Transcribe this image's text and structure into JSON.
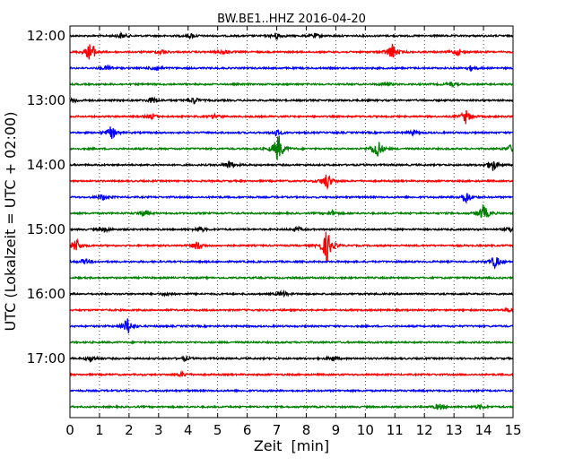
{
  "chart_data": {
    "type": "line",
    "title": "BW.BE1..HHZ 2016-04-20",
    "xlabel": "Zeit  [min]",
    "ylabel": "UTC (Lokalzeit = UTC + 02:00)",
    "xlim": [
      0,
      15
    ],
    "x_ticks": [
      "0",
      "1",
      "2",
      "3",
      "4",
      "5",
      "6",
      "7",
      "8",
      "9",
      "10",
      "11",
      "12",
      "13",
      "14",
      "15"
    ],
    "y_tick_labels": [
      "12:00",
      "13:00",
      "14:00",
      "15:00",
      "16:00",
      "17:00"
    ],
    "grid": "vertical dotted lines at each minute",
    "line_colors": [
      "#000000",
      "#ff0000",
      "#0000ff",
      "#008000"
    ],
    "series": [
      {
        "start": "12:00",
        "events": [
          {
            "x": 1.75,
            "amp": 0.25
          },
          {
            "x": 4.1,
            "amp": 0.2
          },
          {
            "x": 7.0,
            "amp": 0.3
          },
          {
            "x": 8.3,
            "amp": 0.2
          }
        ]
      },
      {
        "start": "12:15",
        "events": [
          {
            "x": 0.7,
            "amp": 1.0
          },
          {
            "x": 3.1,
            "amp": 0.2
          },
          {
            "x": 5.2,
            "amp": 0.2
          },
          {
            "x": 10.9,
            "amp": 0.8
          },
          {
            "x": 13.1,
            "amp": 0.3
          }
        ]
      },
      {
        "start": "12:30",
        "events": [
          {
            "x": 1.3,
            "amp": 0.25
          },
          {
            "x": 2.9,
            "amp": 0.3
          },
          {
            "x": 13.6,
            "amp": 0.25
          }
        ]
      },
      {
        "start": "12:45",
        "events": [
          {
            "x": 10.7,
            "amp": 0.2
          },
          {
            "x": 12.9,
            "amp": 0.2
          }
        ]
      },
      {
        "start": "13:00",
        "events": [
          {
            "x": 0.15,
            "amp": 0.2
          },
          {
            "x": 2.8,
            "amp": 0.3
          },
          {
            "x": 4.2,
            "amp": 0.3
          }
        ]
      },
      {
        "start": "13:15",
        "events": [
          {
            "x": 2.8,
            "amp": 0.25
          },
          {
            "x": 4.9,
            "amp": 0.2
          },
          {
            "x": 13.4,
            "amp": 0.6
          }
        ]
      },
      {
        "start": "13:30",
        "events": [
          {
            "x": 1.4,
            "amp": 0.6
          },
          {
            "x": 7.0,
            "amp": 0.3
          },
          {
            "x": 11.6,
            "amp": 0.2
          }
        ]
      },
      {
        "start": "13:45",
        "events": [
          {
            "x": 7.05,
            "amp": 1.4
          },
          {
            "x": 10.4,
            "amp": 1.0
          },
          {
            "x": 14.9,
            "amp": 0.3
          }
        ]
      },
      {
        "start": "14:00",
        "events": [
          {
            "x": 5.4,
            "amp": 0.4
          },
          {
            "x": 14.3,
            "amp": 0.6
          }
        ]
      },
      {
        "start": "14:15",
        "events": [
          {
            "x": 8.7,
            "amp": 0.8
          }
        ]
      },
      {
        "start": "14:30",
        "events": [
          {
            "x": 1.1,
            "amp": 0.3
          },
          {
            "x": 13.4,
            "amp": 0.6
          }
        ]
      },
      {
        "start": "14:45",
        "events": [
          {
            "x": 2.5,
            "amp": 0.3
          },
          {
            "x": 8.9,
            "amp": 0.2
          },
          {
            "x": 14.0,
            "amp": 0.8
          }
        ]
      },
      {
        "start": "15:00",
        "events": [
          {
            "x": 1.2,
            "amp": 0.2
          },
          {
            "x": 4.4,
            "amp": 0.25
          },
          {
            "x": 7.7,
            "amp": 0.2
          },
          {
            "x": 14.95,
            "amp": 0.3
          }
        ]
      },
      {
        "start": "15:15",
        "events": [
          {
            "x": 0.2,
            "amp": 0.7
          },
          {
            "x": 4.3,
            "amp": 0.4
          },
          {
            "x": 8.7,
            "amp": 1.6
          }
        ]
      },
      {
        "start": "15:30",
        "events": [
          {
            "x": 0.5,
            "amp": 0.25
          },
          {
            "x": 14.4,
            "amp": 0.6
          }
        ]
      },
      {
        "start": "15:45",
        "events": []
      },
      {
        "start": "16:00",
        "events": [
          {
            "x": 7.2,
            "amp": 0.25
          },
          {
            "x": 3.3,
            "amp": 0.15
          }
        ]
      },
      {
        "start": "16:15",
        "events": [
          {
            "x": 14.9,
            "amp": 0.2
          }
        ]
      },
      {
        "start": "16:30",
        "events": [
          {
            "x": 1.95,
            "amp": 0.8
          }
        ]
      },
      {
        "start": "16:45",
        "events": []
      },
      {
        "start": "17:00",
        "events": [
          {
            "x": 0.75,
            "amp": 0.3
          },
          {
            "x": 3.9,
            "amp": 0.15
          },
          {
            "x": 8.9,
            "amp": 0.2
          }
        ]
      },
      {
        "start": "17:15",
        "events": [
          {
            "x": 3.8,
            "amp": 0.2
          }
        ]
      },
      {
        "start": "17:30",
        "events": []
      },
      {
        "start": "17:45",
        "events": [
          {
            "x": 12.5,
            "amp": 0.3
          },
          {
            "x": 13.9,
            "amp": 0.2
          }
        ]
      }
    ]
  }
}
